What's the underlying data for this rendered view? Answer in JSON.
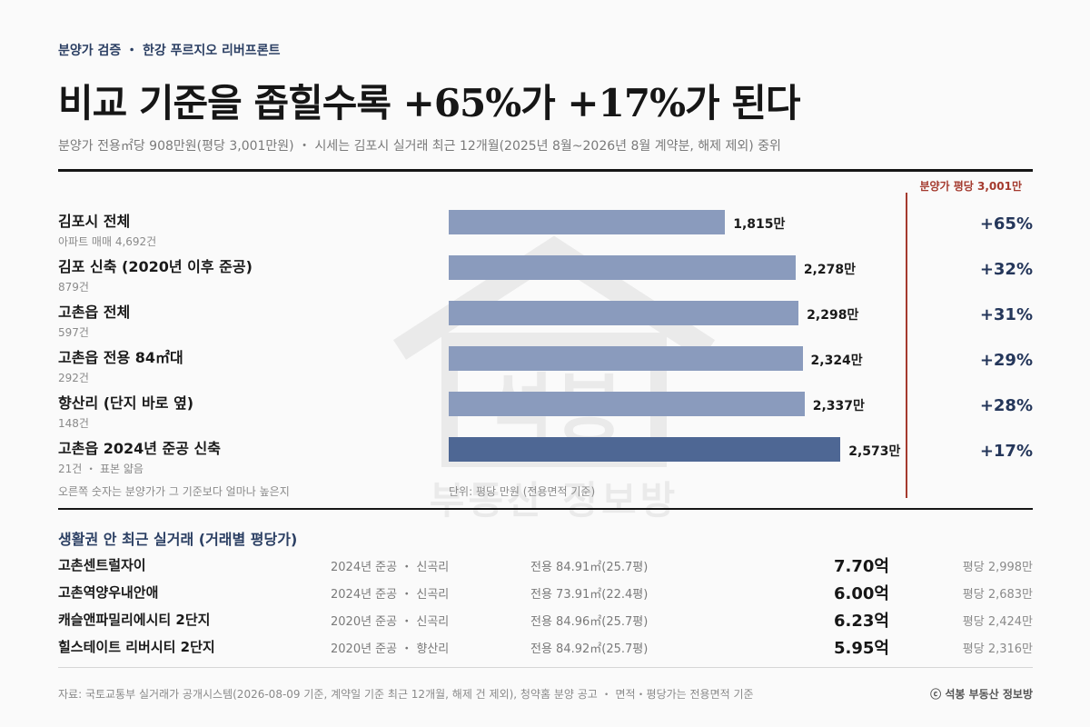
{
  "header": {
    "kicker": "분양가 검증 ・ 한강 푸르지오 리버프론트",
    "title": "비교 기준을 좁힐수록 +65%가 +17%가 된다",
    "subtitle": "분양가 전용㎡당 908만원(평당 3,001만원) ・ 시세는 김포시 실거래 최근 12개월(2025년 8월~2026년 8월 계약분, 해제 제외) 중위"
  },
  "reference": {
    "label": "분양가 평당 3,001만",
    "value": 3001,
    "color": "#a43a2e"
  },
  "chart_data": {
    "type": "bar",
    "orientation": "horizontal",
    "categories": [
      "김포시 전체",
      "김포 신축 (2020년 이후 준공)",
      "고촌읍 전체",
      "고촌읍 전용 84㎡대",
      "향산리 (단지 바로 옆)",
      "고촌읍 2024년 준공 신축"
    ],
    "category_notes": [
      "아파트 매매 4,692건",
      "879건",
      "597건",
      "292건",
      "148건",
      "21건 ・ 표본 얇음"
    ],
    "values": [
      1815,
      2278,
      2298,
      2324,
      2337,
      2573
    ],
    "value_labels": [
      "1,815만",
      "2,278만",
      "2,298만",
      "2,324만",
      "2,337만",
      "2,573만"
    ],
    "premium_labels": [
      "+65%",
      "+32%",
      "+31%",
      "+29%",
      "+28%",
      "+17%"
    ],
    "highlight_index": 5,
    "reference_value": 3001,
    "xlim": [
      0,
      3001
    ],
    "unit": "단위: 평당 만원 (전용면적 기준)",
    "premium_note": "오른쪽 숫자는 분양가가 그 기준보다 얼마나 높은지",
    "colors": {
      "bar": "#8a9bbd",
      "highlight": "#4e6794",
      "premium": "#24365a"
    }
  },
  "transactions": {
    "heading": "생활권 안 최근 실거래 (거래별 평당가)",
    "rows": [
      {
        "name": "고촌센트럴자이",
        "built": "2024년 준공 ・ 신곡리",
        "area": "전용 84.91㎡(25.7평)",
        "price": "7.70억",
        "per_pyeong": "평당 2,998만"
      },
      {
        "name": "고촌역양우내안애",
        "built": "2024년 준공 ・ 신곡리",
        "area": "전용 73.91㎡(22.4평)",
        "price": "6.00억",
        "per_pyeong": "평당 2,683만"
      },
      {
        "name": "캐슬앤파밀리에시티 2단지",
        "built": "2020년 준공 ・ 신곡리",
        "area": "전용 84.96㎡(25.7평)",
        "price": "6.23억",
        "per_pyeong": "평당 2,424만"
      },
      {
        "name": "힐스테이트 리버시티 2단지",
        "built": "2020년 준공 ・ 향산리",
        "area": "전용 84.92㎡(25.7평)",
        "price": "5.95억",
        "per_pyeong": "평당 2,316만"
      }
    ]
  },
  "footer": {
    "source": "자료: 국토교통부 실거래가 공개시스템(2026-08-09 기준, 계약일 기준 최근 12개월, 해제 건 제외), 청약홈 분양 공고 ・ 면적・평당가는 전용면적 기준",
    "brand": "ⓒ 석봉 부동산 정보방"
  },
  "watermark": {
    "text": "부동산 정보방",
    "logo_text": "석봉"
  }
}
